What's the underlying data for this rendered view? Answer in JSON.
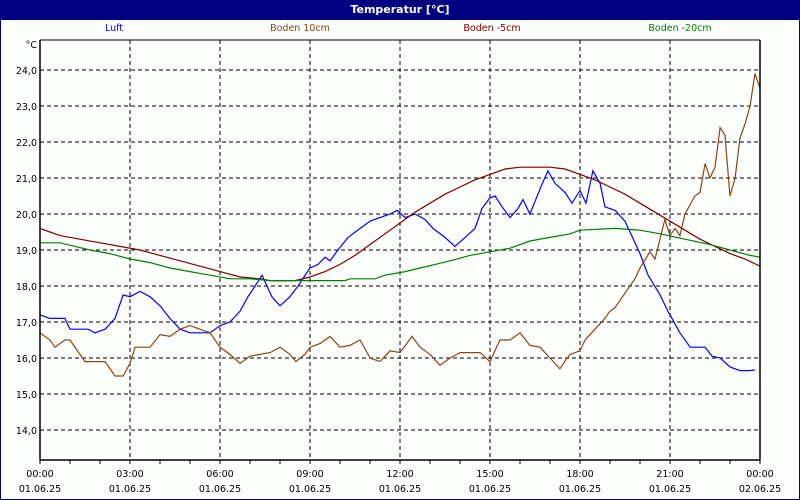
{
  "window": {
    "title": "Temperatur [°C]",
    "title_bg": "#000080"
  },
  "chart_data": {
    "type": "line",
    "title": "Temperatur [°C]",
    "xlabel": "",
    "ylabel": "°C",
    "ylim": [
      13.0,
      24.8
    ],
    "xlim_hours": [
      0,
      24
    ],
    "grid": true,
    "legend_position": "top",
    "y_ticks": [
      "24,0",
      "23,0",
      "22,0",
      "21,0",
      "20,0",
      "19,0",
      "18,0",
      "17,0",
      "16,0",
      "15,0",
      "14,0"
    ],
    "x_ticks": [
      {
        "time": "00:00",
        "date": "01.06.25"
      },
      {
        "time": "03:00",
        "date": "01.06.25"
      },
      {
        "time": "06:00",
        "date": "01.06.25"
      },
      {
        "time": "09:00",
        "date": "01.06.25"
      },
      {
        "time": "12:00",
        "date": "01.06.25"
      },
      {
        "time": "15:00",
        "date": "01.06.25"
      },
      {
        "time": "18:00",
        "date": "01.06.25"
      },
      {
        "time": "21:00",
        "date": "01.06.25"
      },
      {
        "time": "00:00",
        "date": "02.06.25"
      }
    ],
    "series": [
      {
        "name": "Luft",
        "color": "#0000ff",
        "points": [
          [
            0,
            17.2
          ],
          [
            0.33,
            17.1
          ],
          [
            0.83,
            17.1
          ],
          [
            1.0,
            16.8
          ],
          [
            1.6,
            16.8
          ],
          [
            1.83,
            16.7
          ],
          [
            2.17,
            16.8
          ],
          [
            2.5,
            17.1
          ],
          [
            2.77,
            17.75
          ],
          [
            3.0,
            17.7
          ],
          [
            3.33,
            17.85
          ],
          [
            3.67,
            17.7
          ],
          [
            4.0,
            17.45
          ],
          [
            4.33,
            17.1
          ],
          [
            4.67,
            16.8
          ],
          [
            5.0,
            16.7
          ],
          [
            5.67,
            16.7
          ],
          [
            6.0,
            16.9
          ],
          [
            6.33,
            17.0
          ],
          [
            6.67,
            17.3
          ],
          [
            6.93,
            17.7
          ],
          [
            7.17,
            18.0
          ],
          [
            7.4,
            18.3
          ],
          [
            7.73,
            17.7
          ],
          [
            8.0,
            17.45
          ],
          [
            8.33,
            17.7
          ],
          [
            8.6,
            18.0
          ],
          [
            9.0,
            18.5
          ],
          [
            9.27,
            18.6
          ],
          [
            9.5,
            18.8
          ],
          [
            9.67,
            18.7
          ],
          [
            9.93,
            19.0
          ],
          [
            10.27,
            19.35
          ],
          [
            10.67,
            19.6
          ],
          [
            11.0,
            19.8
          ],
          [
            11.33,
            19.9
          ],
          [
            11.67,
            20.0
          ],
          [
            11.9,
            20.1
          ],
          [
            12.17,
            19.9
          ],
          [
            12.5,
            20.0
          ],
          [
            12.83,
            19.85
          ],
          [
            13.1,
            19.6
          ],
          [
            13.5,
            19.35
          ],
          [
            13.83,
            19.1
          ],
          [
            14.17,
            19.35
          ],
          [
            14.5,
            19.6
          ],
          [
            14.73,
            20.15
          ],
          [
            15.0,
            20.45
          ],
          [
            15.17,
            20.5
          ],
          [
            15.4,
            20.2
          ],
          [
            15.67,
            19.9
          ],
          [
            15.93,
            20.15
          ],
          [
            16.1,
            20.4
          ],
          [
            16.33,
            20.0
          ],
          [
            16.67,
            20.7
          ],
          [
            16.93,
            21.2
          ],
          [
            17.17,
            20.85
          ],
          [
            17.5,
            20.6
          ],
          [
            17.73,
            20.3
          ],
          [
            18.0,
            20.65
          ],
          [
            18.2,
            20.3
          ],
          [
            18.43,
            21.2
          ],
          [
            18.67,
            20.85
          ],
          [
            18.83,
            20.2
          ],
          [
            19.17,
            20.1
          ],
          [
            19.5,
            19.8
          ],
          [
            20.0,
            18.9
          ],
          [
            20.27,
            18.3
          ],
          [
            20.67,
            17.75
          ],
          [
            20.93,
            17.3
          ],
          [
            21.33,
            16.7
          ],
          [
            21.67,
            16.3
          ],
          [
            22.17,
            16.3
          ],
          [
            22.4,
            16.05
          ],
          [
            22.67,
            16.0
          ],
          [
            23.0,
            15.75
          ],
          [
            23.33,
            15.65
          ],
          [
            23.67,
            15.65
          ],
          [
            23.83,
            15.67
          ]
        ]
      },
      {
        "name": "Boden 10cm",
        "color": "#8b4513",
        "points": [
          [
            0,
            16.7
          ],
          [
            0.33,
            16.5
          ],
          [
            0.5,
            16.3
          ],
          [
            0.83,
            16.5
          ],
          [
            1.0,
            16.5
          ],
          [
            1.5,
            15.9
          ],
          [
            2.17,
            15.9
          ],
          [
            2.5,
            15.5
          ],
          [
            2.77,
            15.5
          ],
          [
            3.0,
            15.85
          ],
          [
            3.17,
            16.3
          ],
          [
            3.67,
            16.3
          ],
          [
            4.0,
            16.65
          ],
          [
            4.33,
            16.6
          ],
          [
            4.67,
            16.8
          ],
          [
            5.0,
            16.9
          ],
          [
            5.33,
            16.8
          ],
          [
            5.67,
            16.7
          ],
          [
            6.0,
            16.3
          ],
          [
            6.33,
            16.1
          ],
          [
            6.67,
            15.85
          ],
          [
            7.0,
            16.05
          ],
          [
            7.33,
            16.1
          ],
          [
            7.67,
            16.15
          ],
          [
            8.0,
            16.3
          ],
          [
            8.33,
            16.1
          ],
          [
            8.53,
            15.9
          ],
          [
            8.83,
            16.1
          ],
          [
            9.0,
            16.3
          ],
          [
            9.33,
            16.4
          ],
          [
            9.67,
            16.6
          ],
          [
            10.0,
            16.3
          ],
          [
            10.33,
            16.35
          ],
          [
            10.67,
            16.5
          ],
          [
            11.0,
            16.0
          ],
          [
            11.33,
            15.9
          ],
          [
            11.67,
            16.2
          ],
          [
            12.0,
            16.15
          ],
          [
            12.4,
            16.6
          ],
          [
            12.67,
            16.3
          ],
          [
            13.0,
            16.1
          ],
          [
            13.17,
            15.95
          ],
          [
            13.33,
            15.8
          ],
          [
            13.67,
            16.0
          ],
          [
            14.0,
            16.15
          ],
          [
            14.33,
            16.15
          ],
          [
            14.67,
            16.15
          ],
          [
            15.0,
            15.9
          ],
          [
            15.33,
            16.5
          ],
          [
            15.67,
            16.5
          ],
          [
            16.0,
            16.7
          ],
          [
            16.33,
            16.35
          ],
          [
            16.67,
            16.3
          ],
          [
            17.0,
            16.0
          ],
          [
            17.33,
            15.7
          ],
          [
            17.53,
            15.95
          ],
          [
            17.67,
            16.1
          ],
          [
            18.0,
            16.2
          ],
          [
            18.17,
            16.5
          ],
          [
            18.5,
            16.8
          ],
          [
            18.83,
            17.1
          ],
          [
            19.0,
            17.3
          ],
          [
            19.17,
            17.4
          ],
          [
            19.5,
            17.8
          ],
          [
            19.83,
            18.2
          ],
          [
            20.0,
            18.5
          ]
        ]
      },
      {
        "name": "Boden -5cm",
        "color": "#800000",
        "points": [
          [
            0,
            19.6
          ],
          [
            0.33,
            19.5
          ],
          [
            0.67,
            19.4
          ],
          [
            1.33,
            19.3
          ],
          [
            2.0,
            19.2
          ],
          [
            2.67,
            19.1
          ],
          [
            3.33,
            19.0
          ],
          [
            4.0,
            18.85
          ],
          [
            4.67,
            18.7
          ],
          [
            5.33,
            18.55
          ],
          [
            6.0,
            18.4
          ],
          [
            6.67,
            18.25
          ],
          [
            7.33,
            18.2
          ],
          [
            7.67,
            18.15
          ],
          [
            8.0,
            18.15
          ],
          [
            8.5,
            18.15
          ],
          [
            9.0,
            18.25
          ],
          [
            9.5,
            18.4
          ],
          [
            10.0,
            18.6
          ],
          [
            10.5,
            18.85
          ],
          [
            11.0,
            19.15
          ],
          [
            11.5,
            19.45
          ],
          [
            12.0,
            19.75
          ],
          [
            12.5,
            20.05
          ],
          [
            13.0,
            20.3
          ],
          [
            13.5,
            20.55
          ],
          [
            14.0,
            20.75
          ],
          [
            14.5,
            20.95
          ],
          [
            15.0,
            21.1
          ],
          [
            15.5,
            21.25
          ],
          [
            16.0,
            21.3
          ],
          [
            17.0,
            21.3
          ],
          [
            17.5,
            21.25
          ],
          [
            18.0,
            21.1
          ],
          [
            18.5,
            20.95
          ],
          [
            19.0,
            20.75
          ],
          [
            19.5,
            20.55
          ],
          [
            20.0,
            20.3
          ],
          [
            20.5,
            20.05
          ],
          [
            21.0,
            19.8
          ],
          [
            21.5,
            19.55
          ],
          [
            22.0,
            19.3
          ],
          [
            22.5,
            19.1
          ],
          [
            23.0,
            18.9
          ],
          [
            23.5,
            18.75
          ],
          [
            24.0,
            18.55
          ]
        ]
      },
      {
        "name": "Boden -20cm",
        "color": "#008000",
        "points": [
          [
            0,
            19.2
          ],
          [
            0.67,
            19.2
          ],
          [
            1.17,
            19.1
          ],
          [
            1.67,
            19.0
          ],
          [
            2.33,
            18.9
          ],
          [
            3.0,
            18.75
          ],
          [
            3.67,
            18.65
          ],
          [
            4.33,
            18.5
          ],
          [
            5.0,
            18.4
          ],
          [
            5.67,
            18.3
          ],
          [
            6.33,
            18.2
          ],
          [
            7.0,
            18.2
          ],
          [
            7.67,
            18.15
          ],
          [
            8.33,
            18.15
          ],
          [
            9.0,
            18.15
          ],
          [
            10.17,
            18.15
          ],
          [
            10.33,
            18.2
          ],
          [
            11.17,
            18.2
          ],
          [
            11.5,
            18.3
          ],
          [
            12.17,
            18.4
          ],
          [
            12.67,
            18.5
          ],
          [
            13.17,
            18.6
          ],
          [
            13.67,
            18.7
          ],
          [
            14.33,
            18.85
          ],
          [
            15.0,
            18.95
          ],
          [
            15.67,
            19.05
          ],
          [
            16.33,
            19.25
          ],
          [
            17.0,
            19.35
          ],
          [
            17.67,
            19.45
          ],
          [
            18.0,
            19.55
          ],
          [
            19.17,
            19.6
          ],
          [
            20.0,
            19.55
          ],
          [
            20.67,
            19.45
          ],
          [
            21.5,
            19.3
          ],
          [
            22.33,
            19.15
          ],
          [
            23.0,
            19.0
          ],
          [
            23.67,
            18.85
          ],
          [
            24.0,
            18.8
          ]
        ]
      }
    ]
  }
}
